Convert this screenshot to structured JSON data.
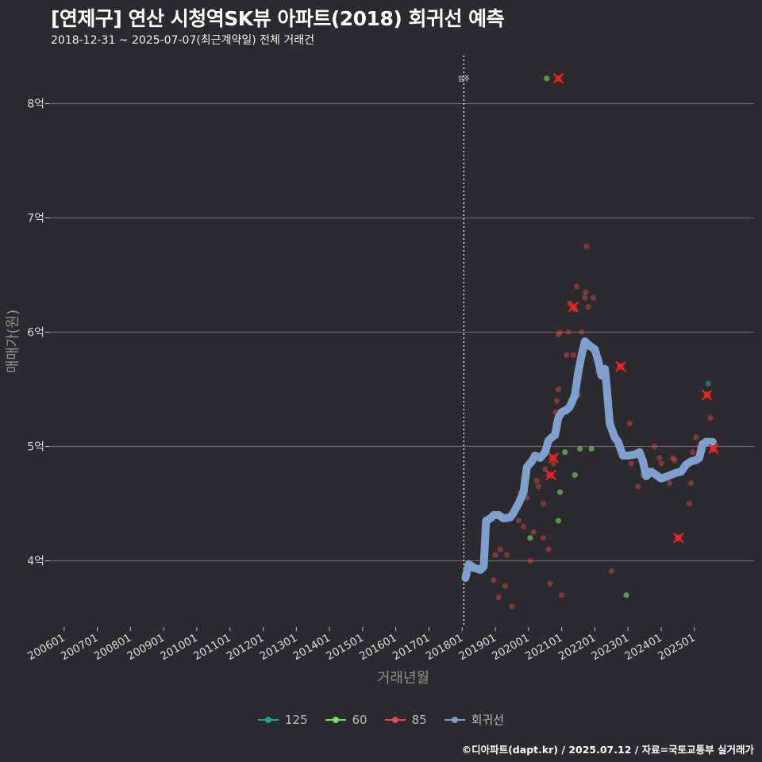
{
  "title": "[연제구] 연산 시청역SK뷰 아파트(2018) 회귀선 예측",
  "subtitle": "2018-12-31 ~ 2025-07-07(최근계약일) 전체 거래건",
  "caption": "©디아파트(dapt.kr) / 2025.07.12 / 자료=국토교통부 실거래가",
  "colors": {
    "background": "#2b2b2d",
    "grid": "#6a6a6a",
    "s125": "#1f9e9e",
    "s60": "#7fd36a",
    "s85": "#e0485a",
    "regression": "#7f9fce",
    "highlight": "#ff2020"
  },
  "legend": [
    {
      "key": "125",
      "label": "125",
      "color": "#1f9e9e"
    },
    {
      "key": "60",
      "label": "60",
      "color": "#7fd36a"
    },
    {
      "key": "85",
      "label": "85",
      "color": "#e0485a"
    },
    {
      "key": "reg",
      "label": "회귀선",
      "color": "#7f9fce"
    }
  ],
  "chart_data": {
    "type": "scatter",
    "title": "[연제구] 연산 시청역SK뷰 아파트(2018) 회귀선 예측",
    "xlabel": "거래년월",
    "ylabel": "매매가(원)",
    "xlim": [
      2005.55,
      2026.8
    ],
    "ylim": [
      3.42,
      8.42
    ],
    "x_ticks": [
      {
        "value": 2006,
        "label": "200601"
      },
      {
        "value": 2007,
        "label": "200701"
      },
      {
        "value": 2008,
        "label": "200801"
      },
      {
        "value": 2009,
        "label": "200901"
      },
      {
        "value": 2010,
        "label": "201001"
      },
      {
        "value": 2011,
        "label": "201101"
      },
      {
        "value": 2012,
        "label": "201201"
      },
      {
        "value": 2013,
        "label": "201301"
      },
      {
        "value": 2014,
        "label": "201401"
      },
      {
        "value": 2015,
        "label": "201501"
      },
      {
        "value": 2016,
        "label": "201601"
      },
      {
        "value": 2017,
        "label": "201701"
      },
      {
        "value": 2018,
        "label": "201801"
      },
      {
        "value": 2019,
        "label": "201901"
      },
      {
        "value": 2020,
        "label": "202001"
      },
      {
        "value": 2021,
        "label": "202101"
      },
      {
        "value": 2022,
        "label": "202201"
      },
      {
        "value": 2023,
        "label": "202301"
      },
      {
        "value": 2024,
        "label": "202401"
      },
      {
        "value": 2025,
        "label": "202501"
      }
    ],
    "y_ticks": [
      {
        "value": 4,
        "label": "4억"
      },
      {
        "value": 5,
        "label": "5억"
      },
      {
        "value": 6,
        "label": "6억"
      },
      {
        "value": 7,
        "label": "7억"
      },
      {
        "value": 8,
        "label": "8억"
      }
    ],
    "vline": {
      "x": 2018.05,
      "label": "입주"
    },
    "series": [
      {
        "name": "125",
        "points": [
          [
            2025.42,
            5.55
          ]
        ]
      },
      {
        "name": "60",
        "points": [
          [
            2020.55,
            8.22
          ],
          [
            2020.05,
            4.2
          ],
          [
            2020.9,
            4.35
          ],
          [
            2020.95,
            4.6
          ],
          [
            2021.1,
            4.95
          ],
          [
            2021.4,
            4.75
          ],
          [
            2021.55,
            4.98
          ],
          [
            2021.9,
            4.98
          ],
          [
            2022.95,
            3.7
          ]
        ]
      },
      {
        "name": "85",
        "points": [
          [
            2019.0,
            4.05
          ],
          [
            2019.15,
            4.1
          ],
          [
            2018.95,
            3.83
          ],
          [
            2019.1,
            3.68
          ],
          [
            2019.3,
            3.78
          ],
          [
            2019.35,
            4.05
          ],
          [
            2019.5,
            3.6
          ],
          [
            2019.7,
            4.35
          ],
          [
            2019.85,
            4.3
          ],
          [
            2019.75,
            4.6
          ],
          [
            2019.95,
            4.55
          ],
          [
            2020.05,
            4.0
          ],
          [
            2020.15,
            4.25
          ],
          [
            2020.25,
            4.7
          ],
          [
            2020.3,
            4.65
          ],
          [
            2020.45,
            4.5
          ],
          [
            2020.45,
            4.2
          ],
          [
            2020.5,
            4.8
          ],
          [
            2020.6,
            4.75
          ],
          [
            2020.6,
            4.1
          ],
          [
            2020.65,
            3.8
          ],
          [
            2020.7,
            4.9
          ],
          [
            2020.75,
            4.85
          ],
          [
            2020.78,
            5.1
          ],
          [
            2020.8,
            5.2
          ],
          [
            2020.82,
            5.3
          ],
          [
            2020.85,
            5.4
          ],
          [
            2020.9,
            5.5
          ],
          [
            2020.9,
            5.98
          ],
          [
            2020.95,
            6.0
          ],
          [
            2021.0,
            3.7
          ],
          [
            2021.15,
            5.8
          ],
          [
            2021.2,
            6.0
          ],
          [
            2021.25,
            6.25
          ],
          [
            2021.35,
            5.8
          ],
          [
            2021.4,
            6.2
          ],
          [
            2021.45,
            6.4
          ],
          [
            2021.5,
            5.45
          ],
          [
            2021.6,
            6.0
          ],
          [
            2021.7,
            6.3
          ],
          [
            2021.72,
            6.35
          ],
          [
            2021.75,
            6.75
          ],
          [
            2021.8,
            6.22
          ],
          [
            2021.95,
            6.3
          ],
          [
            2022.1,
            5.65
          ],
          [
            2022.3,
            5.6
          ],
          [
            2022.5,
            3.91
          ],
          [
            2022.55,
            5.1
          ],
          [
            2022.75,
            5.7
          ],
          [
            2023.05,
            5.2
          ],
          [
            2023.1,
            4.85
          ],
          [
            2023.3,
            4.65
          ],
          [
            2023.45,
            4.75
          ],
          [
            2023.8,
            5.0
          ],
          [
            2023.95,
            4.9
          ],
          [
            2024.0,
            4.85
          ],
          [
            2024.25,
            4.68
          ],
          [
            2024.35,
            4.9
          ],
          [
            2024.4,
            4.88
          ],
          [
            2024.5,
            4.2
          ],
          [
            2024.85,
            4.5
          ],
          [
            2024.9,
            4.68
          ],
          [
            2024.95,
            4.95
          ],
          [
            2025.05,
            5.08
          ],
          [
            2025.15,
            5.0
          ],
          [
            2025.4,
            5.45
          ],
          [
            2025.48,
            5.25
          ],
          [
            2025.55,
            4.98
          ]
        ]
      },
      {
        "name": "회귀선",
        "points": [
          [
            2018.1,
            3.85
          ],
          [
            2018.2,
            3.97
          ],
          [
            2018.35,
            3.94
          ],
          [
            2018.55,
            3.92
          ],
          [
            2018.65,
            3.95
          ],
          [
            2018.72,
            4.35
          ],
          [
            2018.85,
            4.37
          ],
          [
            2018.95,
            4.4
          ],
          [
            2019.1,
            4.4
          ],
          [
            2019.25,
            4.37
          ],
          [
            2019.45,
            4.38
          ],
          [
            2019.55,
            4.42
          ],
          [
            2019.7,
            4.5
          ],
          [
            2019.85,
            4.6
          ],
          [
            2019.95,
            4.82
          ],
          [
            2020.1,
            4.87
          ],
          [
            2020.2,
            4.92
          ],
          [
            2020.35,
            4.9
          ],
          [
            2020.5,
            4.95
          ],
          [
            2020.6,
            5.05
          ],
          [
            2020.7,
            5.08
          ],
          [
            2020.8,
            5.1
          ],
          [
            2020.9,
            5.25
          ],
          [
            2021.0,
            5.3
          ],
          [
            2021.15,
            5.32
          ],
          [
            2021.25,
            5.35
          ],
          [
            2021.4,
            5.45
          ],
          [
            2021.5,
            5.65
          ],
          [
            2021.6,
            5.8
          ],
          [
            2021.7,
            5.92
          ],
          [
            2021.85,
            5.88
          ],
          [
            2022.0,
            5.85
          ],
          [
            2022.1,
            5.75
          ],
          [
            2022.2,
            5.62
          ],
          [
            2022.3,
            5.68
          ],
          [
            2022.35,
            5.55
          ],
          [
            2022.45,
            5.2
          ],
          [
            2022.6,
            5.08
          ],
          [
            2022.7,
            5.04
          ],
          [
            2022.85,
            4.92
          ],
          [
            2023.0,
            4.92
          ],
          [
            2023.2,
            4.93
          ],
          [
            2023.35,
            4.95
          ],
          [
            2023.45,
            4.87
          ],
          [
            2023.55,
            4.74
          ],
          [
            2023.7,
            4.78
          ],
          [
            2023.85,
            4.75
          ],
          [
            2024.0,
            4.72
          ],
          [
            2024.2,
            4.74
          ],
          [
            2024.45,
            4.77
          ],
          [
            2024.6,
            4.78
          ],
          [
            2024.75,
            4.84
          ],
          [
            2024.9,
            4.87
          ],
          [
            2025.05,
            4.88
          ],
          [
            2025.15,
            4.9
          ],
          [
            2025.25,
            5.02
          ],
          [
            2025.35,
            5.04
          ],
          [
            2025.55,
            5.04
          ]
        ]
      }
    ],
    "highlights": [
      [
        2020.9,
        8.22
      ],
      [
        2020.75,
        4.9
      ],
      [
        2020.68,
        4.75
      ],
      [
        2021.35,
        6.22
      ],
      [
        2022.78,
        5.7
      ],
      [
        2024.52,
        4.2
      ],
      [
        2025.38,
        5.45
      ],
      [
        2025.58,
        4.98
      ]
    ]
  }
}
